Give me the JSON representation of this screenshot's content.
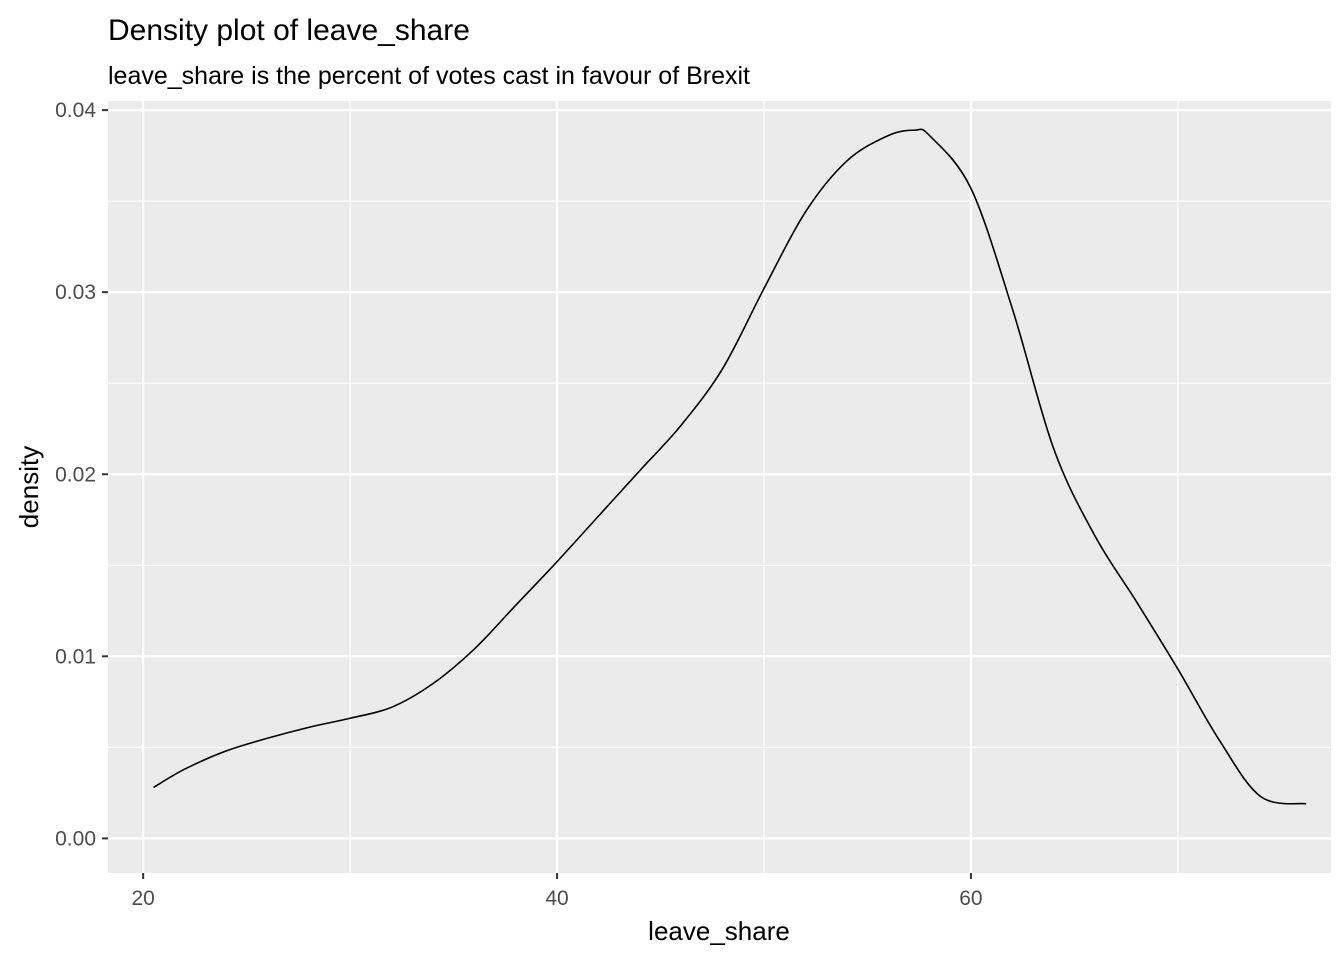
{
  "chart_data": {
    "type": "area",
    "title": "Density plot of leave_share",
    "subtitle": "leave_share is the percent of votes cast in favour of Brexit",
    "xlabel": "leave_share",
    "ylabel": "density",
    "xlim": [
      18.3,
      77.4
    ],
    "ylim": [
      -0.0019,
      0.0405
    ],
    "x_ticks": [
      20,
      40,
      60
    ],
    "x_tick_labels": [
      "20",
      "40",
      "60"
    ],
    "y_ticks": [
      0.0,
      0.01,
      0.02,
      0.03,
      0.04
    ],
    "y_tick_labels": [
      "0.00",
      "0.01",
      "0.02",
      "0.03",
      "0.04"
    ],
    "x_minor_grid": [
      30,
      50,
      70
    ],
    "y_minor_grid": [
      0.005,
      0.015,
      0.025,
      0.035
    ],
    "grid": true,
    "legend": "none",
    "colors": {
      "panel_background": "#ebebeb",
      "grid": "#ffffff",
      "line": "#000000",
      "axis_text": "#4d4d4d",
      "title_text": "#000000"
    },
    "series": [
      {
        "x": [
          20.5,
          22,
          24,
          26,
          28,
          30,
          32,
          34,
          36,
          38,
          40,
          42,
          44,
          46,
          48,
          50,
          52,
          54,
          56,
          57.3,
          58,
          60,
          62,
          64,
          66,
          68,
          70,
          72,
          74,
          76.2
        ],
        "y": [
          0.0028,
          0.0038,
          0.0048,
          0.0055,
          0.0061,
          0.0066,
          0.0072,
          0.0085,
          0.0104,
          0.0128,
          0.0152,
          0.0177,
          0.0202,
          0.0227,
          0.0258,
          0.0302,
          0.0344,
          0.0372,
          0.0386,
          0.0389,
          0.0386,
          0.0357,
          0.0291,
          0.0214,
          0.0166,
          0.013,
          0.0093,
          0.0054,
          0.0023,
          0.0019
        ]
      }
    ]
  }
}
